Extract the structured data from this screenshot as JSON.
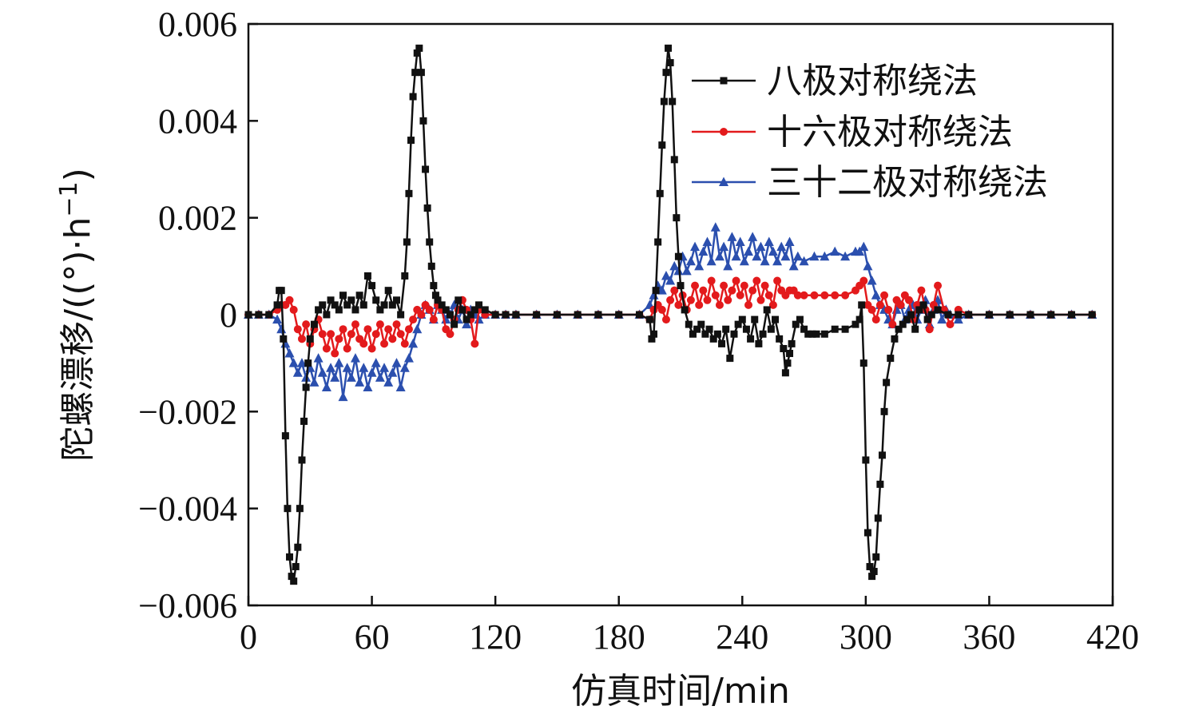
{
  "chart_data": {
    "type": "line",
    "title": "",
    "xlabel": "仿真时间/min",
    "ylabel": "陀螺漂移/((°)·h",
    "ylabel_sup": "−1",
    "ylabel_end": ")",
    "xlim": [
      0,
      420
    ],
    "ylim": [
      -0.006,
      0.006
    ],
    "xticks": [
      0,
      60,
      120,
      180,
      240,
      300,
      360,
      420
    ],
    "xtick_labels": [
      "0",
      "60",
      "120",
      "180",
      "240",
      "300",
      "360",
      "420"
    ],
    "yticks": [
      0.006,
      0.004,
      0.002,
      0,
      -0.002,
      -0.004,
      -0.006
    ],
    "ytick_labels": [
      "0.006",
      "0.004",
      "0.002",
      "0",
      "−0.002",
      "−0.004",
      "−0.006"
    ],
    "legend_position": "top-right",
    "series": [
      {
        "name": "八极对称绕法",
        "color": "#111111",
        "marker": "square",
        "x": [
          0,
          5,
          10,
          14,
          15,
          16,
          17,
          18,
          19,
          20,
          21,
          22,
          23,
          24,
          25,
          26,
          27,
          28,
          29,
          30,
          32,
          34,
          36,
          38,
          40,
          42,
          44,
          46,
          48,
          50,
          52,
          54,
          56,
          58,
          60,
          62,
          64,
          66,
          68,
          70,
          72,
          74,
          76,
          77,
          78,
          79,
          80,
          81,
          82,
          83,
          84,
          85,
          86,
          87,
          88,
          89,
          90,
          91,
          92,
          94,
          96,
          98,
          100,
          102,
          104,
          106,
          108,
          110,
          112,
          115,
          120,
          125,
          130,
          140,
          150,
          160,
          170,
          180,
          190,
          195,
          196,
          197,
          198,
          199,
          200,
          201,
          202,
          203,
          204,
          205,
          206,
          207,
          208,
          209,
          210,
          212,
          214,
          216,
          218,
          220,
          222,
          224,
          226,
          228,
          230,
          232,
          234,
          236,
          238,
          240,
          242,
          244,
          246,
          248,
          250,
          252,
          254,
          256,
          258,
          260,
          261,
          262,
          263,
          264,
          266,
          268,
          270,
          272,
          274,
          276,
          280,
          285,
          290,
          295,
          297,
          298,
          299,
          300,
          301,
          302,
          303,
          304,
          305,
          306,
          307,
          308,
          309,
          310,
          312,
          314,
          316,
          318,
          320,
          322,
          324,
          326,
          328,
          330,
          332,
          335,
          340,
          345,
          350,
          360,
          370,
          380,
          390,
          400,
          410
        ],
        "y": [
          0,
          0,
          0,
          0.0002,
          0.0005,
          0.0005,
          -0.0005,
          -0.0025,
          -0.004,
          -0.005,
          -0.0054,
          -0.0055,
          -0.0052,
          -0.0048,
          -0.004,
          -0.003,
          -0.0022,
          -0.0015,
          -0.001,
          -0.0005,
          -0.0002,
          0.0001,
          0.0002,
          0.0,
          0.0003,
          0.0002,
          0.0001,
          0.0004,
          0.0002,
          0.0003,
          0.0001,
          0.0004,
          0.0002,
          0.0008,
          0.0006,
          0.0003,
          0.0001,
          0.0002,
          0.0005,
          0.0002,
          0.0003,
          0.0,
          0.0008,
          0.0015,
          0.0025,
          0.0036,
          0.0045,
          0.005,
          0.0054,
          0.0055,
          0.005,
          0.004,
          0.003,
          0.0022,
          0.0015,
          0.001,
          0.0006,
          0.0004,
          0.0003,
          0.0002,
          0.0001,
          0.0,
          -0.0002,
          0.0003,
          0.0001,
          -0.0001,
          0.0,
          0.0001,
          0.0002,
          0.0001,
          0,
          0,
          0,
          0,
          0,
          0,
          0,
          0,
          0,
          -0.0001,
          -0.0005,
          -0.0004,
          0.0005,
          0.0015,
          0.0025,
          0.0035,
          0.0044,
          0.005,
          0.0055,
          0.0052,
          0.0044,
          0.0032,
          0.002,
          0.0012,
          0.0006,
          0.0001,
          -0.0002,
          -0.0004,
          -0.0003,
          -0.0002,
          -0.0004,
          -0.0003,
          -0.0005,
          -0.0004,
          -0.0006,
          -0.0003,
          -0.0009,
          -0.0004,
          -0.0002,
          -0.0001,
          -0.0003,
          -0.0005,
          -0.0001,
          -0.0006,
          -0.0004,
          0.0001,
          -0.0003,
          -0.0001,
          -0.0005,
          -0.0007,
          -0.0012,
          -0.001,
          -0.0008,
          -0.0006,
          -0.0002,
          -0.0001,
          -0.0003,
          -0.0004,
          -0.0004,
          -0.0004,
          -0.0004,
          -0.0003,
          -0.0003,
          -0.0002,
          -0.0001,
          0.0002,
          -0.001,
          -0.003,
          -0.0045,
          -0.0052,
          -0.0054,
          -0.0053,
          -0.005,
          -0.0042,
          -0.0035,
          -0.0029,
          -0.002,
          -0.0014,
          -0.0009,
          -0.0005,
          -0.0003,
          -0.0002,
          -0.0001,
          0.0,
          -0.0003,
          0.0001,
          0.0002,
          -0.0001,
          0.0,
          0.0001,
          0,
          0,
          0,
          0,
          0,
          0,
          0,
          0,
          0
        ]
      },
      {
        "name": "十六极对称绕法",
        "color": "#e31a1c",
        "marker": "circle",
        "x": [
          0,
          5,
          10,
          14,
          16,
          18,
          20,
          22,
          24,
          26,
          28,
          30,
          32,
          34,
          36,
          38,
          40,
          42,
          44,
          46,
          48,
          50,
          52,
          54,
          56,
          58,
          60,
          62,
          64,
          66,
          68,
          70,
          72,
          74,
          76,
          78,
          80,
          82,
          84,
          86,
          88,
          90,
          92,
          94,
          96,
          98,
          100,
          102,
          104,
          106,
          108,
          110,
          112,
          115,
          120,
          125,
          130,
          140,
          150,
          160,
          170,
          180,
          190,
          195,
          197,
          199,
          201,
          203,
          205,
          207,
          209,
          211,
          213,
          215,
          217,
          219,
          221,
          223,
          225,
          227,
          229,
          231,
          233,
          235,
          237,
          239,
          241,
          243,
          245,
          247,
          249,
          251,
          253,
          255,
          257,
          259,
          261,
          263,
          265,
          267,
          270,
          275,
          280,
          285,
          290,
          295,
          297,
          299,
          301,
          303,
          305,
          307,
          309,
          311,
          313,
          315,
          317,
          319,
          321,
          323,
          325,
          327,
          329,
          331,
          333,
          335,
          338,
          341,
          345,
          350,
          360,
          370,
          380,
          390,
          400,
          410
        ],
        "y": [
          0,
          0,
          0,
          0.0001,
          0.0002,
          0.0002,
          0.0003,
          0.0001,
          -0.0003,
          -0.0005,
          -0.0002,
          -0.0006,
          -0.0003,
          -0.0001,
          -0.0004,
          -0.0007,
          -0.0004,
          -0.0008,
          -0.0005,
          -0.0003,
          -0.0007,
          -0.0004,
          -0.0002,
          -0.0005,
          -0.0006,
          -0.0003,
          -0.0007,
          -0.0004,
          -0.0002,
          -0.0006,
          -0.0003,
          -0.0005,
          -0.0002,
          -0.0004,
          -0.0006,
          -0.0003,
          -0.0001,
          0.0001,
          0.0,
          0.0002,
          0.0001,
          -0.0001,
          0.0002,
          0.0001,
          -0.0003,
          -0.0004,
          -0.0001,
          0.0001,
          0.0003,
          0.0001,
          -0.0001,
          -0.0006,
          0.0001,
          0.0,
          0,
          0,
          0,
          0,
          0,
          0,
          0,
          0,
          0,
          -0.0001,
          0.0001,
          0.0002,
          0.0001,
          -0.0001,
          0.0003,
          0.0005,
          0.0002,
          0.0004,
          0.0001,
          0.0003,
          0.0006,
          0.0002,
          0.0005,
          0.0003,
          0.0007,
          0.0004,
          0.0002,
          0.0006,
          0.0003,
          0.0005,
          0.0007,
          0.0004,
          0.0006,
          0.0002,
          0.0005,
          0.0007,
          0.0003,
          0.0006,
          0.0004,
          0.0002,
          0.0007,
          0.0005,
          0.0004,
          0.0005,
          0.0005,
          0.0004,
          0.0004,
          0.0004,
          0.0004,
          0.0004,
          0.0004,
          0.0005,
          0.0006,
          0.0007,
          0.0002,
          0.0001,
          -0.0001,
          0.0002,
          0.0004,
          0.0001,
          -0.0002,
          0.0003,
          0.0002,
          0.0004,
          0.0003,
          -0.0001,
          0.0002,
          0.0005,
          0.0001,
          -0.0003,
          0.0002,
          0.0006,
          0.0001,
          -0.0002,
          0.0001,
          0.0,
          0,
          0,
          0,
          0,
          0,
          0
        ]
      },
      {
        "name": "三十二极对称绕法",
        "color": "#2b4fae",
        "marker": "triangle",
        "x": [
          0,
          5,
          10,
          14,
          16,
          18,
          20,
          22,
          24,
          26,
          28,
          30,
          32,
          34,
          36,
          38,
          40,
          42,
          44,
          46,
          48,
          50,
          52,
          54,
          56,
          58,
          60,
          62,
          64,
          66,
          68,
          70,
          72,
          74,
          76,
          78,
          80,
          82,
          84,
          86,
          88,
          90,
          92,
          94,
          96,
          98,
          100,
          102,
          104,
          106,
          108,
          110,
          112,
          115,
          120,
          125,
          130,
          140,
          150,
          160,
          170,
          180,
          190,
          195,
          197,
          199,
          201,
          203,
          205,
          207,
          209,
          211,
          213,
          215,
          217,
          219,
          221,
          223,
          225,
          227,
          229,
          231,
          233,
          235,
          237,
          239,
          241,
          243,
          245,
          247,
          249,
          251,
          253,
          255,
          257,
          259,
          261,
          263,
          265,
          267,
          270,
          275,
          280,
          285,
          290,
          295,
          297,
          299,
          301,
          303,
          305,
          307,
          309,
          311,
          313,
          315,
          317,
          319,
          321,
          323,
          325,
          327,
          329,
          331,
          333,
          335,
          337,
          339,
          341,
          345,
          350,
          360,
          370,
          380,
          390,
          400,
          410
        ],
        "y": [
          0,
          0,
          0,
          -0.0001,
          -0.0003,
          -0.0006,
          -0.0008,
          -0.001,
          -0.0012,
          -0.001,
          -0.0013,
          -0.0011,
          -0.0014,
          -0.0009,
          -0.0012,
          -0.0015,
          -0.0011,
          -0.0013,
          -0.001,
          -0.0017,
          -0.0011,
          -0.0013,
          -0.0009,
          -0.0014,
          -0.0011,
          -0.0015,
          -0.0012,
          -0.001,
          -0.0013,
          -0.0011,
          -0.0014,
          -0.0012,
          -0.001,
          -0.0015,
          -0.0011,
          -0.0009,
          -0.0006,
          -0.0003,
          0.0,
          0.0002,
          0.0001,
          -0.0001,
          0.0002,
          0.0001,
          -0.0001,
          0.0,
          0.0002,
          -0.0001,
          0.0001,
          -0.0002,
          0.0001,
          0.0,
          -0.0001,
          0.0,
          0,
          0,
          0,
          0,
          0,
          0,
          0,
          0,
          0,
          0.0002,
          0.0004,
          0.0006,
          0.0005,
          0.0008,
          0.0007,
          0.001,
          0.0009,
          0.0012,
          0.0009,
          0.0011,
          0.0014,
          0.001,
          0.0013,
          0.0015,
          0.0011,
          0.0018,
          0.0012,
          0.0014,
          0.001,
          0.0016,
          0.0012,
          0.0015,
          0.0011,
          0.0013,
          0.0016,
          0.0012,
          0.0014,
          0.0011,
          0.0015,
          0.0013,
          0.0011,
          0.0014,
          0.0012,
          0.0015,
          0.001,
          0.0012,
          0.0011,
          0.0012,
          0.0012,
          0.0013,
          0.0012,
          0.0013,
          0.0013,
          0.0014,
          0.001,
          0.0007,
          0.0004,
          0.0002,
          0.0001,
          -0.0001,
          -0.0002,
          0.0001,
          0.0002,
          -0.0001,
          0.0001,
          0.0002,
          -0.0001,
          0.0001,
          0.0003,
          -0.0002,
          0.0001,
          0.0003,
          -0.0001,
          0.0001,
          0.0,
          -0.0001,
          0.0,
          0,
          0,
          0,
          0,
          0,
          0
        ]
      }
    ]
  }
}
